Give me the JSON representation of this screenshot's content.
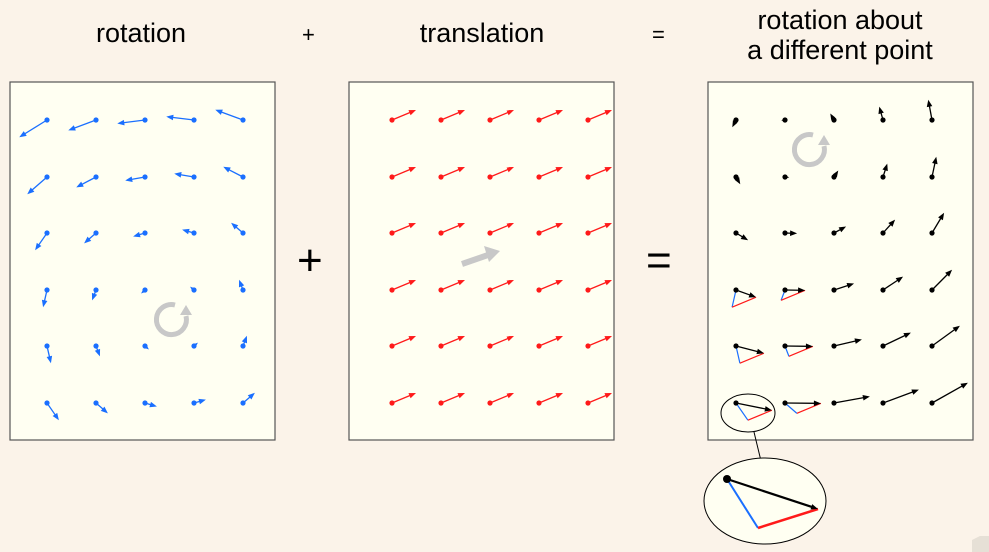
{
  "labels": {
    "rotation": "rotation",
    "plus_small": "+",
    "translation": "translation",
    "equals_small": "=",
    "result_line1": "rotation about",
    "result_line2": "a different point",
    "plus_big": "+",
    "equals_big": "="
  },
  "colors": {
    "background": "#fbf3e9",
    "panel": "#fffff2",
    "rotation": "#1a6fff",
    "translation": "#ff1a1a",
    "result": "#000000",
    "indicator": "#c8c8c8"
  },
  "icons": {
    "rotation_indicator": "circular-arrow-icon",
    "translation_indicator": "straight-arrow-icon"
  }
}
